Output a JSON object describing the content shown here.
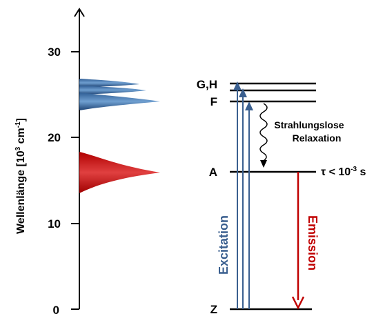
{
  "axis": {
    "label_main": "Wellenlänge  [10",
    "label_exp1": "3",
    "label_mid": " cm",
    "label_exp2": "-1",
    "label_end": "]",
    "ticks": [
      "0",
      "10",
      "20",
      "30"
    ]
  },
  "levels": {
    "gh": "G,H",
    "f": "F",
    "a": "A",
    "z": "Z"
  },
  "annotations": {
    "relaxation_line1": "Strahlungslose",
    "relaxation_line2": "Relaxation",
    "tau_prefix": "τ < 10",
    "tau_exp": "-3",
    "tau_unit": " s",
    "excitation": "Excitation",
    "emission": "Emission"
  },
  "colors": {
    "blue": "#3a5f8f",
    "red": "#c00000"
  }
}
